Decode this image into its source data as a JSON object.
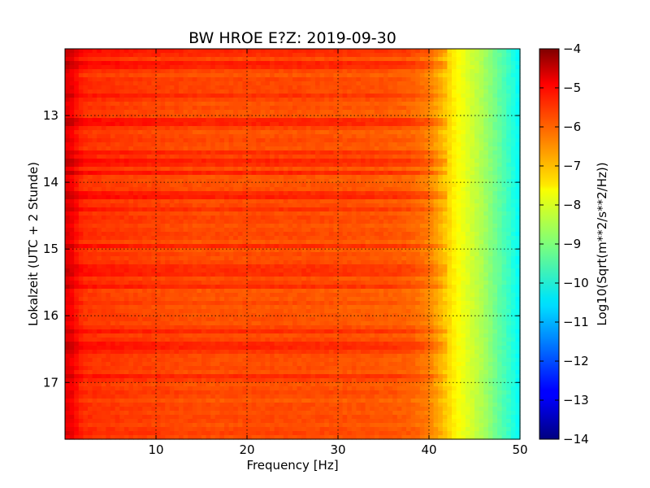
{
  "chart_data": {
    "type": "heatmap",
    "title": "BW HROE E?Z: 2019-09-30",
    "xlabel": "Frequency [Hz]",
    "ylabel": "Lokalzeit (UTC + 2 Stunde)",
    "colorbar_label": "Log10(Sqrt(m**2/s**2/Hz))",
    "xlim": [
      0,
      50
    ],
    "ylim": [
      12.0,
      17.85
    ],
    "y_inverted": true,
    "x_ticks": [
      10,
      20,
      30,
      40,
      50
    ],
    "y_ticks": [
      13,
      14,
      15,
      16,
      17
    ],
    "colorbar_range": [
      -14,
      -4
    ],
    "colorbar_ticks": [
      -4,
      -5,
      -6,
      -7,
      -8,
      -9,
      -10,
      -11,
      -12,
      -13,
      -14
    ],
    "colormap": "jet",
    "grid": true,
    "spectrum_profile": {
      "frequency_hz": [
        0,
        0.5,
        1,
        2,
        5,
        10,
        15,
        20,
        25,
        30,
        35,
        38,
        40,
        41,
        42,
        43,
        44,
        45,
        46,
        47,
        48,
        49,
        50
      ],
      "log_amplitude": [
        -5.1,
        -5.0,
        -5.3,
        -5.7,
        -5.8,
        -5.9,
        -6.0,
        -6.0,
        -6.0,
        -6.05,
        -6.1,
        -6.2,
        -6.5,
        -6.9,
        -7.3,
        -7.7,
        -8.0,
        -8.3,
        -8.6,
        -9.0,
        -9.4,
        -9.8,
        -10.3
      ]
    },
    "strong_rows_hours": [
      12.05,
      12.1,
      12.25,
      12.7,
      13.1,
      13.55,
      13.7,
      13.85,
      14.2,
      14.4,
      14.95,
      15.3,
      15.4,
      15.55,
      16.25,
      16.45,
      16.55,
      16.9
    ]
  }
}
